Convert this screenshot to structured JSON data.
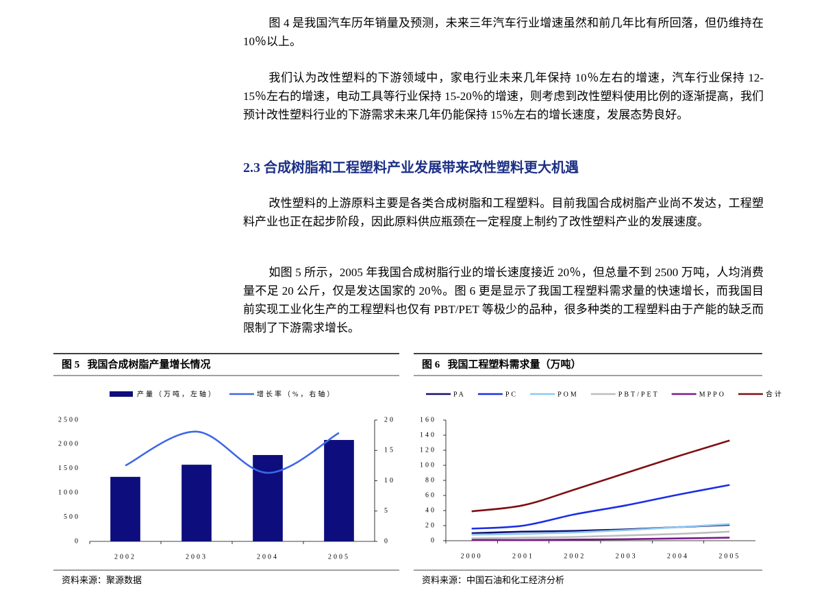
{
  "paragraphs": [
    "图 4 是我国汽车历年销量及预测，未来三年汽车行业增速虽然和前几年比有所回落，但仍维持在 10％以上。",
    "我们认为改性塑料的下游领域中，家电行业未来几年保持 10％左右的增速，汽车行业保持 12-15％左右的增速，电动工具等行业保持 15-20％的增速，则考虑到改性塑料使用比例的逐渐提高，我们预计改性塑料行业的下游需求未来几年仍能保持 15％左右的增长速度，发展态势良好。",
    "改性塑料的上游原料主要是各类合成树脂和工程塑料。目前我国合成树脂产业尚不发达，工程塑料产业也正在起步阶段，因此原料供应瓶颈在一定程度上制约了改性塑料产业的发展速度。",
    "如图 5 所示，2005 年我国合成树脂行业的增长速度接近 20％，但总量不到 2500 万吨，人均消费量不足 20 公斤，仅是发达国家的 20％。图 6 更是显示了我国工程塑料需求量的快速增长，而我国目前实现工业化生产的工程塑料也仅有 PBT/PET 等极少的品种，很多种类的工程塑料由于产能的缺乏而限制了下游需求增长。"
  ],
  "heading": "2.3 合成树脂和工程塑料产业发展带来改性塑料更大机遇",
  "chart_data": [
    {
      "type": "combo",
      "title": "图 5   我国合成树脂产量增长情况",
      "source": "资料来源：聚源数据",
      "categories": [
        "2002",
        "2003",
        "2004",
        "2005"
      ],
      "series": [
        {
          "name": "产量（万吨，左轴）",
          "type": "bar",
          "color": "#0d0d7d",
          "values": [
            1330,
            1580,
            1780,
            2090
          ]
        },
        {
          "name": "增长率（%，右轴）",
          "type": "line",
          "axis": "y2",
          "color": "#3d68e6",
          "values": [
            12.5,
            18.1,
            11.3,
            17.9
          ]
        }
      ],
      "ylim": [
        0,
        2500
      ],
      "yticks": [
        0,
        500,
        1000,
        1500,
        2000,
        2500
      ],
      "y2lim": [
        0,
        20
      ],
      "y2ticks": [
        0,
        5,
        10,
        15,
        20
      ],
      "smooth": true
    },
    {
      "type": "line",
      "title": "图 6   我国工程塑料需求量（万吨）",
      "source": "资料来源：中国石油和化工经济分析",
      "categories": [
        "2000",
        "2001",
        "2002",
        "2003",
        "2004",
        "2005"
      ],
      "series": [
        {
          "name": "PA",
          "color": "#10106e",
          "values": [
            10,
            12,
            13,
            15,
            18,
            21
          ]
        },
        {
          "name": "PC",
          "color": "#1a2ee6",
          "values": [
            16,
            20,
            35,
            47,
            61,
            74
          ]
        },
        {
          "name": "POM",
          "color": "#8ec8f0",
          "values": [
            8,
            9,
            11,
            14,
            18,
            22
          ]
        },
        {
          "name": "PBT/PET",
          "color": "#bdbdbd",
          "values": [
            3,
            4,
            5,
            7,
            9,
            12
          ]
        },
        {
          "name": "MPPO",
          "color": "#7a1a8c",
          "values": [
            1,
            1,
            1.5,
            2,
            3,
            4
          ]
        },
        {
          "name": "合计",
          "color": "#7d0f14",
          "values": [
            39,
            47,
            68,
            90,
            112,
            133
          ]
        }
      ],
      "ylim": [
        0,
        160
      ],
      "yticks": [
        0,
        20,
        40,
        60,
        80,
        100,
        120,
        140,
        160
      ],
      "smooth": true
    }
  ]
}
